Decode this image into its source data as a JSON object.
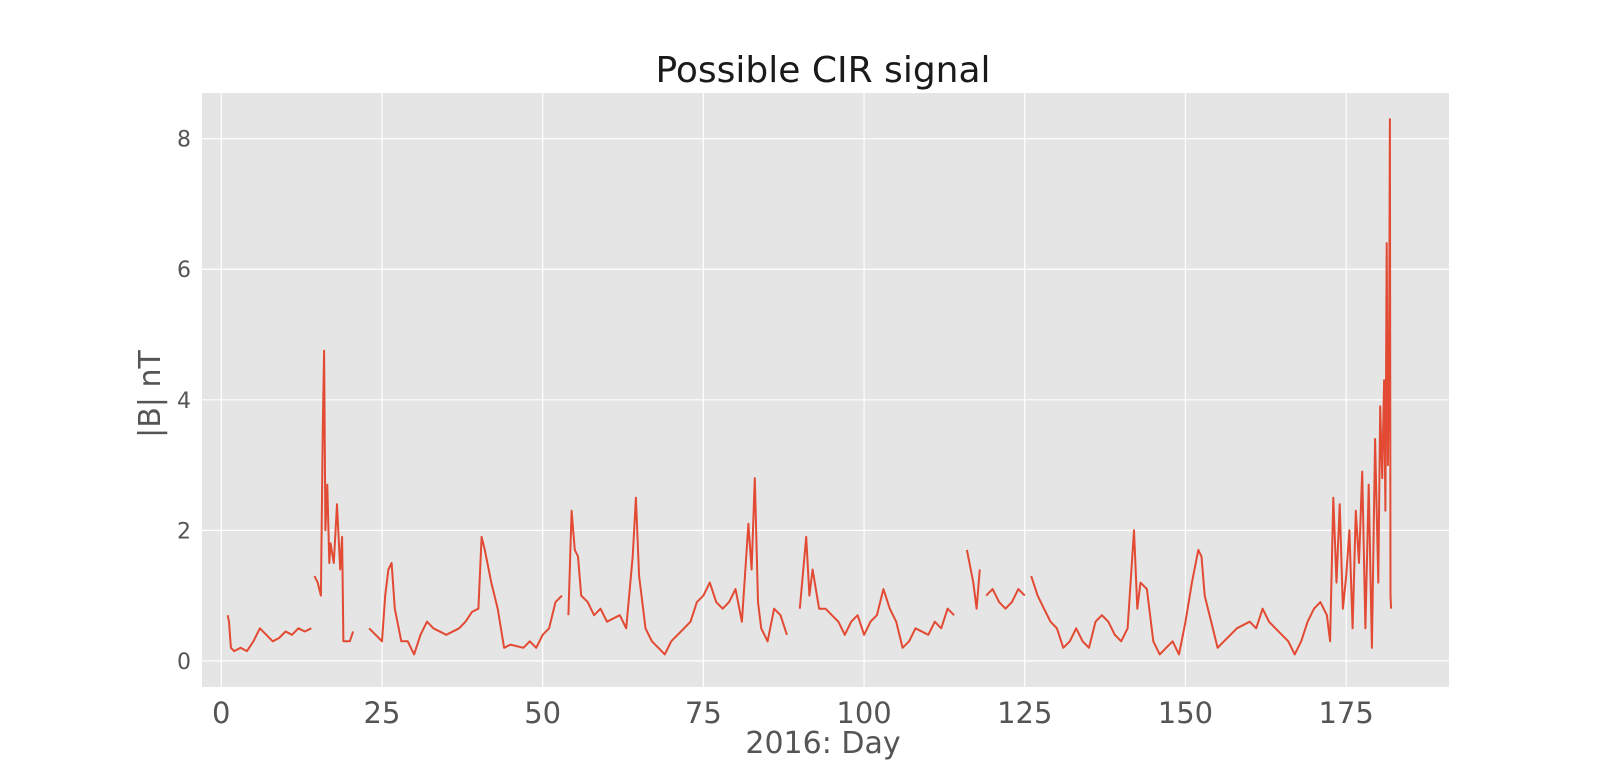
{
  "chart_data": {
    "type": "line",
    "title": "Possible CIR signal",
    "xlabel": "2016: Day",
    "ylabel": "|B| nT",
    "xlim": [
      -3,
      191
    ],
    "ylim": [
      -0.4,
      8.7
    ],
    "xticks": [
      0,
      25,
      50,
      75,
      100,
      125,
      150,
      175
    ],
    "yticks": [
      0,
      2,
      4,
      6,
      8
    ],
    "grid": true,
    "colors": {
      "background": "#e5e5e5",
      "grid": "#ffffff",
      "line": "#e24a33"
    },
    "series": [
      {
        "segments": [
          [
            [
              1,
              0.7
            ],
            [
              1.2,
              0.6
            ],
            [
              1.5,
              0.2
            ],
            [
              2,
              0.15
            ],
            [
              3,
              0.2
            ],
            [
              4,
              0.15
            ],
            [
              5,
              0.3
            ],
            [
              6,
              0.5
            ],
            [
              7,
              0.4
            ],
            [
              8,
              0.3
            ],
            [
              9,
              0.35
            ],
            [
              10,
              0.45
            ],
            [
              11,
              0.4
            ],
            [
              12,
              0.5
            ],
            [
              13,
              0.45
            ],
            [
              14,
              0.5
            ]
          ],
          [
            [
              14.5,
              1.3
            ],
            [
              15,
              1.2
            ],
            [
              15.5,
              1.0
            ],
            [
              15.8,
              3.6
            ],
            [
              16,
              4.75
            ],
            [
              16.2,
              2.0
            ],
            [
              16.5,
              2.7
            ],
            [
              16.8,
              1.5
            ],
            [
              17,
              1.8
            ],
            [
              17.5,
              1.5
            ],
            [
              18,
              2.4
            ],
            [
              18.5,
              1.4
            ],
            [
              18.8,
              1.9
            ],
            [
              19,
              0.3
            ],
            [
              20,
              0.3
            ],
            [
              20.5,
              0.45
            ]
          ],
          [
            [
              23,
              0.5
            ],
            [
              24,
              0.4
            ],
            [
              25,
              0.3
            ],
            [
              25.5,
              1.0
            ],
            [
              26,
              1.4
            ],
            [
              26.5,
              1.5
            ],
            [
              27,
              0.8
            ],
            [
              28,
              0.3
            ],
            [
              29,
              0.3
            ],
            [
              30,
              0.1
            ],
            [
              31,
              0.4
            ],
            [
              32,
              0.6
            ],
            [
              33,
              0.5
            ],
            [
              35,
              0.4
            ],
            [
              37,
              0.5
            ],
            [
              38,
              0.6
            ],
            [
              39,
              0.75
            ],
            [
              40,
              0.8
            ],
            [
              40.5,
              1.9
            ],
            [
              41,
              1.7
            ],
            [
              42,
              1.2
            ],
            [
              43,
              0.8
            ],
            [
              44,
              0.2
            ],
            [
              45,
              0.25
            ],
            [
              47,
              0.2
            ],
            [
              48,
              0.3
            ],
            [
              49,
              0.2
            ],
            [
              50,
              0.4
            ],
            [
              51,
              0.5
            ],
            [
              52,
              0.9
            ],
            [
              53,
              1.0
            ]
          ],
          [
            [
              54,
              0.7
            ],
            [
              54.5,
              2.3
            ],
            [
              55,
              1.7
            ],
            [
              55.5,
              1.6
            ],
            [
              56,
              1.0
            ],
            [
              57,
              0.9
            ],
            [
              58,
              0.7
            ],
            [
              59,
              0.8
            ],
            [
              60,
              0.6
            ],
            [
              62,
              0.7
            ],
            [
              63,
              0.5
            ],
            [
              64,
              1.6
            ],
            [
              64.5,
              2.5
            ],
            [
              65,
              1.3
            ],
            [
              66,
              0.5
            ],
            [
              67,
              0.3
            ],
            [
              68,
              0.2
            ],
            [
              69,
              0.1
            ],
            [
              70,
              0.3
            ],
            [
              72,
              0.5
            ],
            [
              73,
              0.6
            ],
            [
              74,
              0.9
            ],
            [
              75,
              1.0
            ],
            [
              76,
              1.2
            ],
            [
              77,
              0.9
            ],
            [
              78,
              0.8
            ],
            [
              79,
              0.9
            ],
            [
              80,
              1.1
            ],
            [
              81,
              0.6
            ],
            [
              82,
              2.1
            ],
            [
              82.5,
              1.4
            ],
            [
              83,
              2.8
            ],
            [
              83.5,
              0.9
            ],
            [
              84,
              0.5
            ],
            [
              85,
              0.3
            ],
            [
              86,
              0.8
            ],
            [
              87,
              0.7
            ],
            [
              88,
              0.4
            ]
          ],
          [
            [
              90,
              0.8
            ],
            [
              91,
              1.9
            ],
            [
              91.5,
              1.0
            ],
            [
              92,
              1.4
            ],
            [
              93,
              0.8
            ],
            [
              94,
              0.8
            ],
            [
              95,
              0.7
            ],
            [
              96,
              0.6
            ],
            [
              97,
              0.4
            ],
            [
              98,
              0.6
            ],
            [
              99,
              0.7
            ],
            [
              100,
              0.4
            ],
            [
              101,
              0.6
            ],
            [
              102,
              0.7
            ],
            [
              103,
              1.1
            ],
            [
              104,
              0.8
            ],
            [
              105,
              0.6
            ],
            [
              106,
              0.2
            ],
            [
              107,
              0.3
            ],
            [
              108,
              0.5
            ],
            [
              110,
              0.4
            ],
            [
              111,
              0.6
            ],
            [
              112,
              0.5
            ],
            [
              113,
              0.8
            ],
            [
              114,
              0.7
            ]
          ],
          [
            [
              116,
              1.7
            ],
            [
              117,
              1.2
            ],
            [
              117.5,
              0.8
            ],
            [
              118,
              1.4
            ]
          ],
          [
            [
              119,
              1.0
            ],
            [
              120,
              1.1
            ],
            [
              121,
              0.9
            ],
            [
              122,
              0.8
            ],
            [
              123,
              0.9
            ],
            [
              124,
              1.1
            ],
            [
              125,
              1.0
            ]
          ],
          [
            [
              126,
              1.3
            ],
            [
              127,
              1.0
            ],
            [
              128,
              0.8
            ],
            [
              129,
              0.6
            ],
            [
              130,
              0.5
            ],
            [
              131,
              0.2
            ],
            [
              132,
              0.3
            ],
            [
              133,
              0.5
            ],
            [
              134,
              0.3
            ],
            [
              135,
              0.2
            ],
            [
              136,
              0.6
            ],
            [
              137,
              0.7
            ],
            [
              138,
              0.6
            ],
            [
              139,
              0.4
            ],
            [
              140,
              0.3
            ],
            [
              141,
              0.5
            ],
            [
              142,
              2.0
            ],
            [
              142.5,
              0.8
            ],
            [
              143,
              1.2
            ],
            [
              144,
              1.1
            ],
            [
              145,
              0.3
            ],
            [
              146,
              0.1
            ],
            [
              147,
              0.2
            ],
            [
              148,
              0.3
            ],
            [
              149,
              0.1
            ],
            [
              150,
              0.6
            ],
            [
              151,
              1.2
            ],
            [
              152,
              1.7
            ],
            [
              152.5,
              1.6
            ],
            [
              153,
              1.0
            ],
            [
              154,
              0.6
            ],
            [
              155,
              0.2
            ],
            [
              156,
              0.3
            ],
            [
              157,
              0.4
            ],
            [
              158,
              0.5
            ],
            [
              160,
              0.6
            ],
            [
              161,
              0.5
            ],
            [
              162,
              0.8
            ],
            [
              163,
              0.6
            ],
            [
              164,
              0.5
            ],
            [
              165,
              0.4
            ],
            [
              166,
              0.3
            ],
            [
              167,
              0.1
            ],
            [
              168,
              0.3
            ],
            [
              169,
              0.6
            ],
            [
              170,
              0.8
            ],
            [
              171,
              0.9
            ],
            [
              172,
              0.7
            ],
            [
              172.5,
              0.3
            ],
            [
              173,
              2.5
            ],
            [
              173.5,
              1.2
            ],
            [
              174,
              2.4
            ],
            [
              174.5,
              0.8
            ],
            [
              175,
              1.3
            ],
            [
              175.5,
              2.0
            ],
            [
              176,
              0.5
            ],
            [
              176.5,
              2.3
            ],
            [
              177,
              1.5
            ],
            [
              177.5,
              2.9
            ],
            [
              178,
              0.5
            ],
            [
              178.5,
              2.7
            ],
            [
              179,
              0.2
            ],
            [
              179.5,
              3.4
            ],
            [
              180,
              1.2
            ],
            [
              180.3,
              3.9
            ],
            [
              180.6,
              2.8
            ],
            [
              180.9,
              4.3
            ],
            [
              181.1,
              2.3
            ],
            [
              181.3,
              6.4
            ],
            [
              181.5,
              3.0
            ],
            [
              181.7,
              5.0
            ],
            [
              181.8,
              8.3
            ],
            [
              181.9,
              1.0
            ],
            [
              182,
              0.8
            ]
          ]
        ]
      }
    ]
  }
}
